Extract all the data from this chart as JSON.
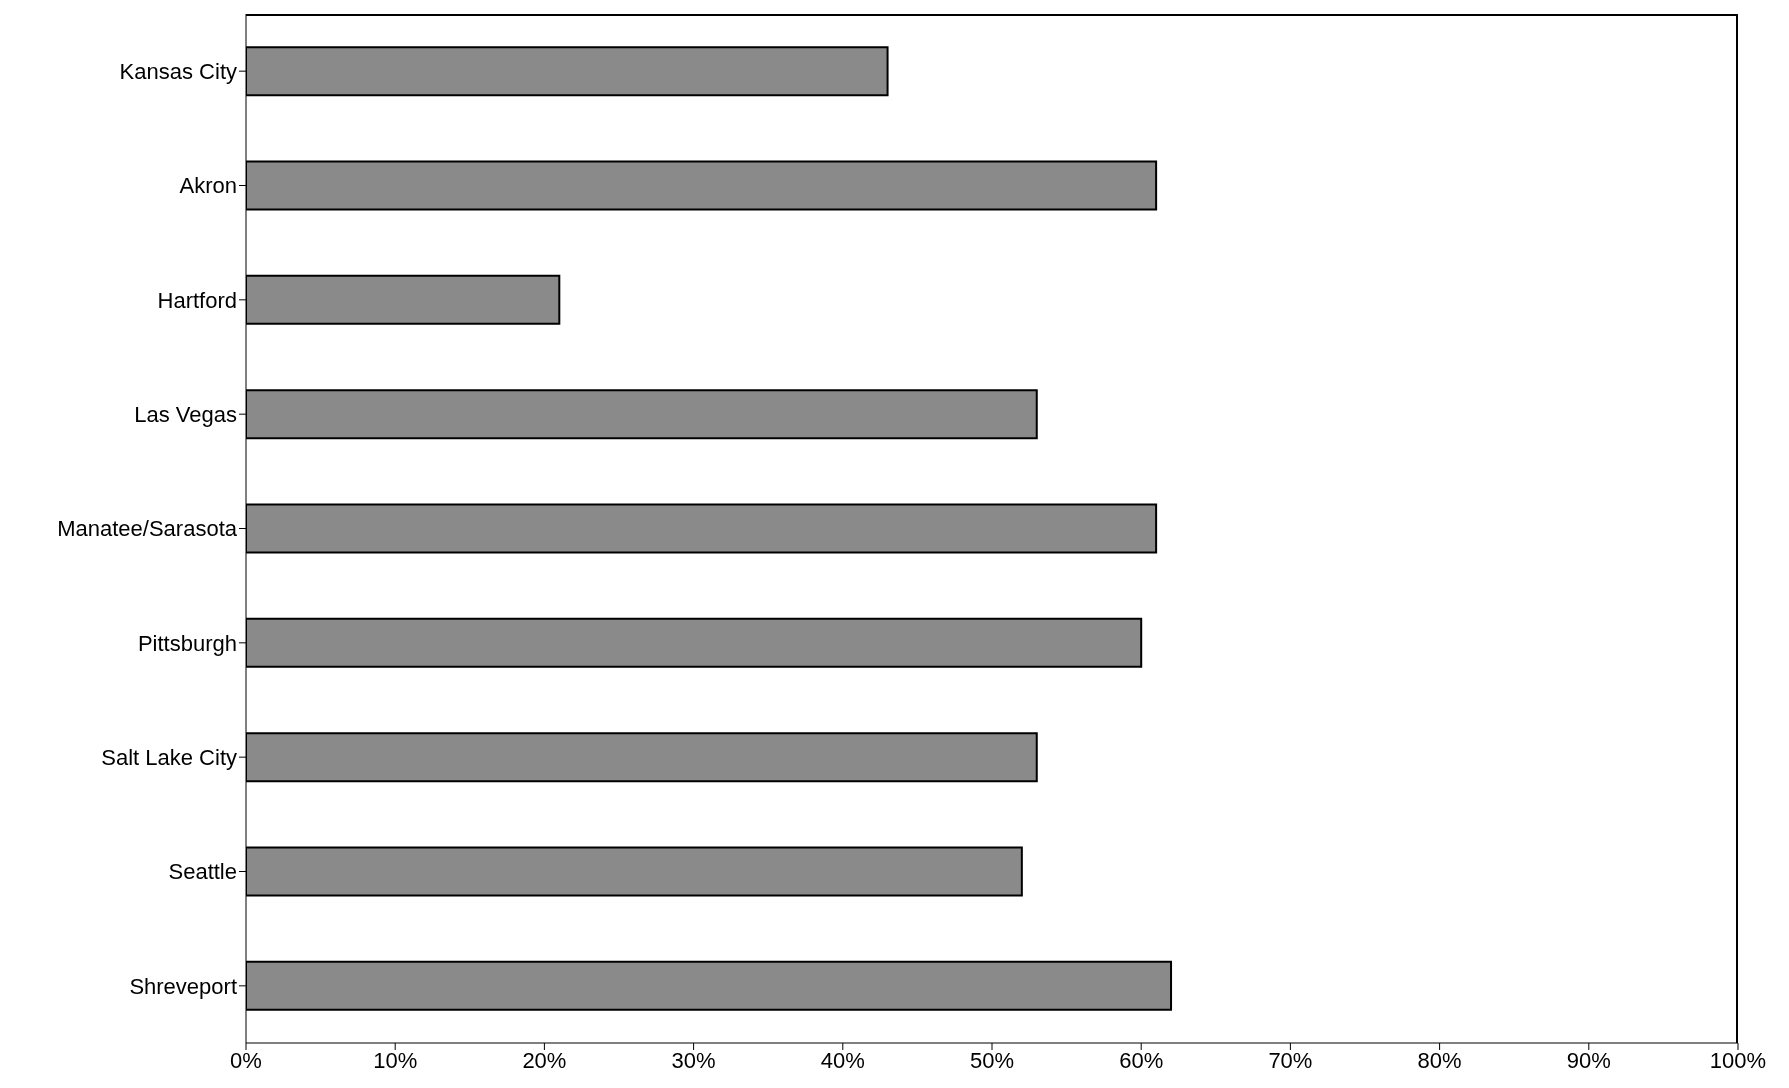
{
  "chart_data": {
    "type": "bar",
    "orientation": "horizontal",
    "categories": [
      "Kansas City",
      "Akron",
      "Hartford",
      "Las Vegas",
      "Manatee/Sarasota",
      "Pittsburgh",
      "Salt Lake City",
      "Seattle",
      "Shreveport"
    ],
    "values": [
      43,
      61,
      21,
      53,
      61,
      60,
      53,
      52,
      62
    ],
    "color": "#8a8a8a",
    "xlim": [
      0,
      100
    ],
    "xticks": [
      {
        "value": 0,
        "label": "0%"
      },
      {
        "value": 10,
        "label": "10%"
      },
      {
        "value": 20,
        "label": "20%"
      },
      {
        "value": 30,
        "label": "30%"
      },
      {
        "value": 40,
        "label": "40%"
      },
      {
        "value": 50,
        "label": "50%"
      },
      {
        "value": 60,
        "label": "60%"
      },
      {
        "value": 70,
        "label": "70%"
      },
      {
        "value": 80,
        "label": "80%"
      },
      {
        "value": 90,
        "label": "90%"
      },
      {
        "value": 100,
        "label": "100%"
      }
    ],
    "grid": false,
    "legend": false
  }
}
